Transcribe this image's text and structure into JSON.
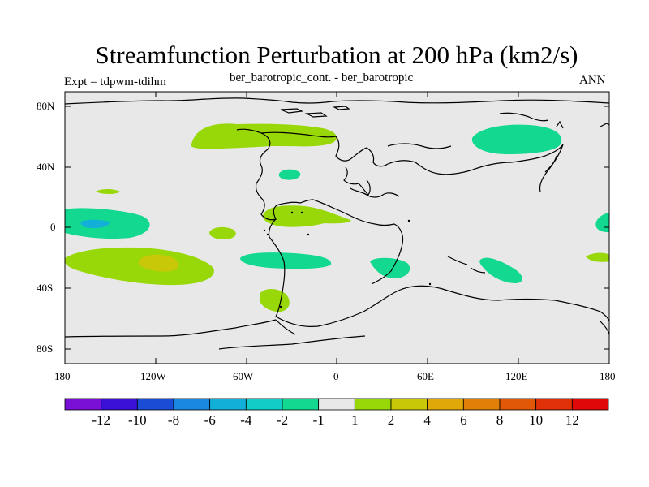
{
  "title": "Streamfunction Perturbation at 200 hPa (km2/s)",
  "subtitle_left": "Expt = tdpwm-tdihm",
  "subtitle_center": "ber_barotropic_cont. - ber_barotropic",
  "subtitle_right": "ANN",
  "map": {
    "projection": "cylindrical-equidistant",
    "lon_range": [
      -180,
      180
    ],
    "lat_range": [
      -90,
      90
    ],
    "background_color": "#e8e8e8",
    "x_ticks": [
      "180",
      "120W",
      "60W",
      "0",
      "60E",
      "120E",
      "180"
    ],
    "y_ticks": [
      "80N",
      "40N",
      "0",
      "40S",
      "80S"
    ],
    "y_tick_values": [
      80,
      40,
      0,
      -40,
      -80
    ]
  },
  "colorbar": {
    "colors": [
      "#7a10d6",
      "#3a10d6",
      "#1a4cd6",
      "#1a88e0",
      "#12b0d8",
      "#12ccc8",
      "#12d890",
      "#e8e8e8",
      "#98d808",
      "#c8c808",
      "#e0a808",
      "#e08008",
      "#e05808",
      "#e03008",
      "#e00808"
    ],
    "labels": [
      "-12",
      "-10",
      "-8",
      "-6",
      "-4",
      "-2",
      "-1",
      "1",
      "2",
      "4",
      "6",
      "8",
      "10",
      "12"
    ]
  }
}
